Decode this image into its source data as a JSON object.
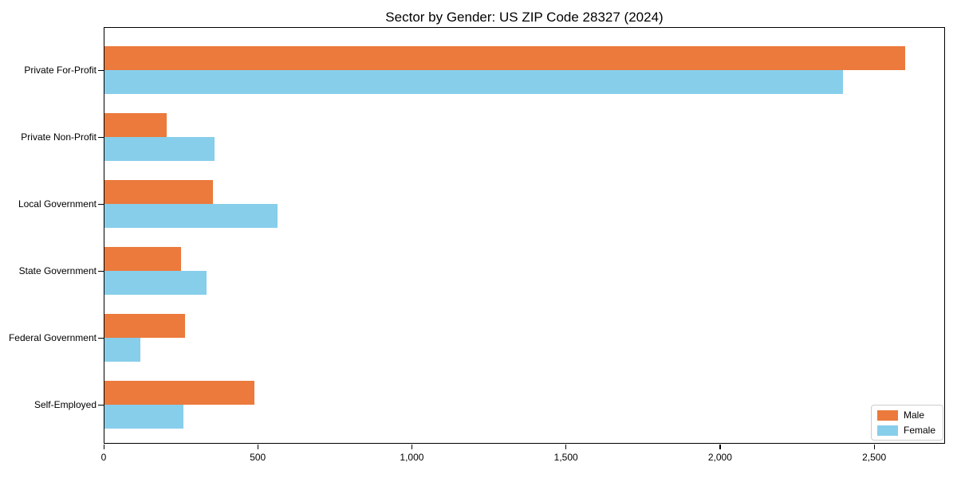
{
  "figure": {
    "background": "#ffffff"
  },
  "chart_data": {
    "type": "bar",
    "orientation": "horizontal",
    "title": "Sector by Gender: US ZIP Code 28327 (2024)",
    "categories": [
      "Private For-Profit",
      "Private Non-Profit",
      "Local Government",
      "State Government",
      "Federal Government",
      "Self-Employed"
    ],
    "series": [
      {
        "name": "Male",
        "color": "#eb7a3c",
        "values": [
          2600,
          205,
          355,
          250,
          265,
          490
        ]
      },
      {
        "name": "Female",
        "color": "#87ceeb",
        "values": [
          2400,
          360,
          565,
          335,
          120,
          260
        ]
      }
    ],
    "xlabel": "",
    "ylabel": "",
    "xlim": [
      0,
      2730
    ],
    "xticks": [
      0,
      500,
      1000,
      1500,
      2000,
      2500
    ],
    "xtick_labels": [
      "0",
      "500",
      "1,000",
      "1,500",
      "2,000",
      "2,500"
    ],
    "grid": false,
    "legend": {
      "position": "lower right"
    }
  }
}
